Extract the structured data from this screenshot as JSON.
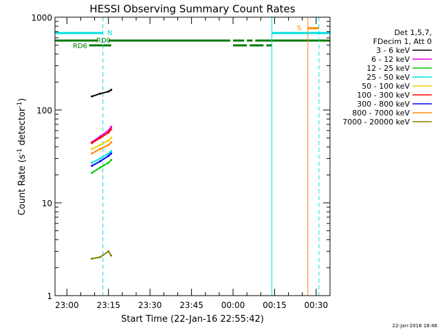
{
  "chart_data": {
    "type": "line",
    "title": "HESSI Observing Summary Count Rates",
    "xlabel": "Start Time (22-Jan-16 22:55:42)",
    "ylabel_parts": [
      "Count Rate (s",
      "-1",
      " detector",
      "-1",
      ")"
    ],
    "yscale": "log",
    "ylim": [
      1,
      1000
    ],
    "xlim_minutes_labels": [
      "22:55:42",
      "00:35:00"
    ],
    "x_tick_labels": [
      "23:00",
      "23:15",
      "23:30",
      "23:45",
      "00:00",
      "00:15",
      "00:30"
    ],
    "y_tick_labels": [
      "1",
      "10",
      "100",
      "1000"
    ],
    "legend_header": [
      "Det 1,5,7,",
      "FDecim 1, Att 0"
    ],
    "series": [
      {
        "name": "3 - 6 keV",
        "color": "#000000",
        "x": [
          "23:09",
          "23:12",
          "23:15",
          "23:16"
        ],
        "values": [
          140,
          150,
          158,
          165
        ]
      },
      {
        "name": "6 - 12 keV",
        "color": "#e000e0",
        "x": [
          "23:09",
          "23:12",
          "23:15",
          "23:16"
        ],
        "values": [
          45,
          52,
          60,
          66
        ]
      },
      {
        "name": "12 - 25 keV",
        "color": "#00cc00",
        "x": [
          "23:09",
          "23:12",
          "23:15",
          "23:16"
        ],
        "values": [
          21,
          24,
          27,
          29
        ]
      },
      {
        "name": "25 - 50 keV",
        "color": "#00e0e0",
        "x": [
          "23:09",
          "23:12",
          "23:15",
          "23:16"
        ],
        "values": [
          27,
          30,
          34,
          36
        ]
      },
      {
        "name": "50 - 100 keV",
        "color": "#e8d000",
        "x": [
          "23:09",
          "23:12",
          "23:15",
          "23:16"
        ],
        "values": [
          38,
          42,
          47,
          50
        ]
      },
      {
        "name": "100 - 300 keV",
        "color": "#ff0000",
        "x": [
          "23:09",
          "23:12",
          "23:15",
          "23:16"
        ],
        "values": [
          44,
          50,
          57,
          62
        ]
      },
      {
        "name": "300 - 800 keV",
        "color": "#0000ff",
        "x": [
          "23:09",
          "23:12",
          "23:15",
          "23:16"
        ],
        "values": [
          25,
          28,
          32,
          34
        ]
      },
      {
        "name": "800 - 7000 keV",
        "color": "#ff8800",
        "x": [
          "23:09",
          "23:12",
          "23:15",
          "23:16"
        ],
        "values": [
          34,
          38,
          42,
          45
        ]
      },
      {
        "name": "7000 - 20000 keV",
        "color": "#808000",
        "x": [
          "23:09",
          "23:12",
          "23:15",
          "23:16"
        ],
        "values": [
          2.5,
          2.6,
          3.0,
          2.7
        ]
      }
    ],
    "flags": [
      {
        "label": "N",
        "color": "#00e0e0",
        "segments": [
          [
            "22:55:42",
            "23:13"
          ],
          [
            "00:14",
            "00:35"
          ]
        ]
      },
      {
        "label": "RD0",
        "color": "#007a00",
        "segments": [
          [
            "22:55:42",
            "23:11"
          ],
          [
            "23:15",
            "23:59"
          ],
          [
            "00:00",
            "00:04"
          ],
          [
            "00:05",
            "00:07"
          ],
          [
            "00:08",
            "00:35"
          ]
        ]
      },
      {
        "label": "RD6",
        "color": "#007a00",
        "segments": [
          [
            "23:08",
            "23:16"
          ],
          [
            "00:00",
            "00:05"
          ],
          [
            "00:06",
            "00:11"
          ],
          [
            "00:12",
            "00:14"
          ]
        ]
      },
      {
        "label": "S",
        "color": "#ff8800",
        "segments": [
          [
            "00:27",
            "00:31"
          ]
        ]
      }
    ],
    "footer_date": "22-Jan-2016 18:48"
  }
}
